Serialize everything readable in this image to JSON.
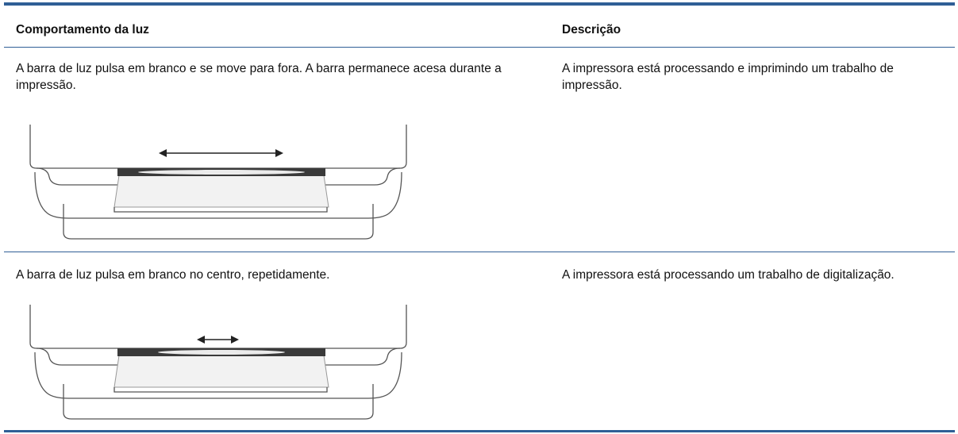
{
  "table": {
    "header": [
      "Comportamento da luz",
      "Descrição"
    ],
    "rows": [
      [
        "A barra de luz pulsa em branco e se move para fora. A barra permanece acesa durante a impressão.",
        "A impressora está processando e imprimindo um trabalho de impressão."
      ],
      [
        "A barra de luz pulsa em branco no centro, repetidamente.",
        "A impressora está processando um trabalho de digitalização."
      ]
    ]
  }
}
